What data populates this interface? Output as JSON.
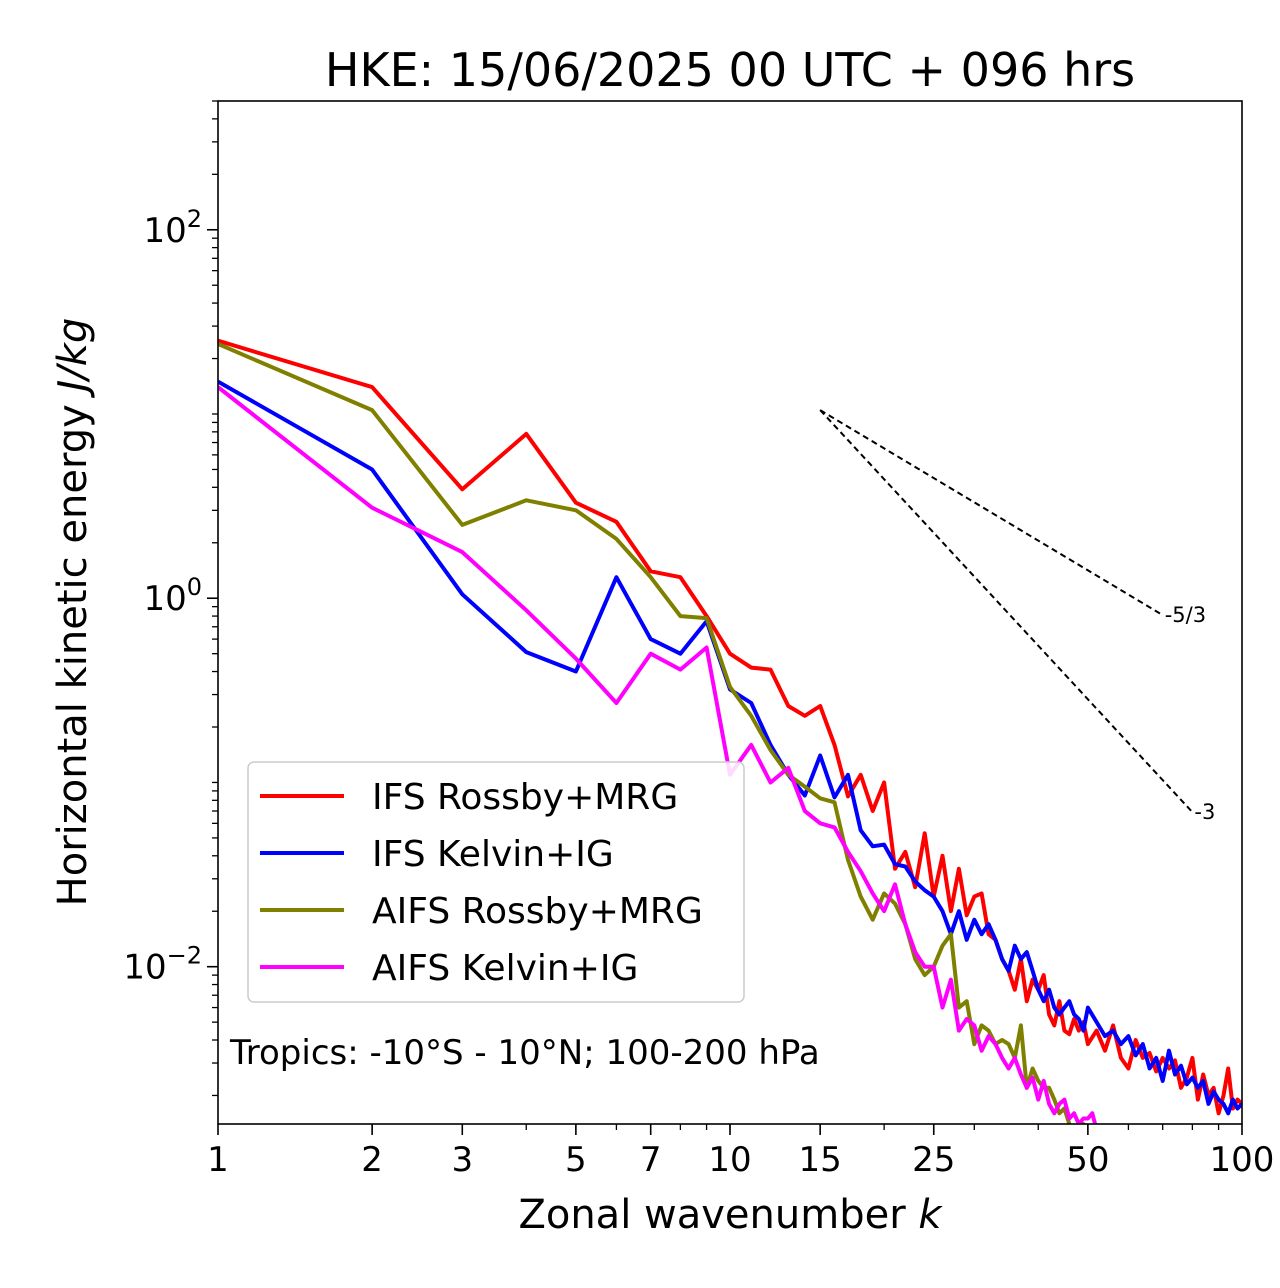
{
  "chart_data": {
    "type": "line",
    "title": "HKE: 15/06/2025 00 UTC + 096 hrs",
    "xlabel": "Zonal wavenumber",
    "xlabel_var": "k",
    "ylabel": "Horizontal kinetic energy",
    "ylabel_unit": "J/kg",
    "x_scale": "log",
    "y_scale": "log",
    "xlim": [
      1,
      100
    ],
    "ylim": [
      0.0014,
      500
    ],
    "x_ticks": [
      1,
      2,
      3,
      5,
      7,
      10,
      15,
      25,
      50,
      100
    ],
    "x_tick_labels": [
      "1",
      "2",
      "3",
      "5",
      "7",
      "10",
      "15",
      "25",
      "50",
      "100"
    ],
    "y_ticks": [
      0.01,
      1,
      100
    ],
    "y_tick_bases": [
      "10",
      "10",
      "10"
    ],
    "y_tick_exponents": [
      "−2",
      "0",
      "2"
    ],
    "grid": false,
    "legend_position": "lower-left",
    "annotation": "Tropics: -10°S - 10°N; 100-200 hPa",
    "reference_slopes": [
      {
        "label": "-5/3",
        "x_start": 15,
        "y_start": 10.5,
        "x_end": 70,
        "y_end": 0.81
      },
      {
        "label": "-3",
        "x_start": 15,
        "y_start": 10.5,
        "x_end": 80,
        "y_end": 0.069
      }
    ],
    "series": [
      {
        "name": "IFS Rossby+MRG",
        "color": "#ff0000",
        "x": [
          1,
          2,
          3,
          4,
          5,
          6,
          7,
          8,
          9,
          10,
          11,
          12,
          13,
          14,
          15,
          16,
          17,
          18,
          19,
          20,
          21,
          22,
          23,
          24,
          25,
          26,
          27,
          28,
          29,
          30,
          31,
          32,
          33,
          34,
          35,
          36,
          37,
          38,
          39,
          40,
          41,
          42,
          43,
          44,
          45,
          46,
          47,
          48,
          49,
          50,
          52,
          54,
          56,
          58,
          60,
          62,
          64,
          66,
          68,
          70,
          72,
          74,
          76,
          78,
          80,
          82,
          84,
          86,
          88,
          90,
          92,
          94,
          96,
          98,
          100
        ],
        "y": [
          25,
          14,
          3.9,
          7.8,
          3.3,
          2.6,
          1.4,
          1.3,
          0.8,
          0.5,
          0.42,
          0.41,
          0.26,
          0.23,
          0.26,
          0.16,
          0.084,
          0.11,
          0.07,
          0.1,
          0.034,
          0.042,
          0.027,
          0.053,
          0.024,
          0.04,
          0.02,
          0.034,
          0.019,
          0.024,
          0.025,
          0.015,
          0.014,
          0.011,
          0.0095,
          0.0075,
          0.011,
          0.0065,
          0.0085,
          0.0075,
          0.009,
          0.0055,
          0.0048,
          0.0065,
          0.0045,
          0.0043,
          0.0052,
          0.0045,
          0.005,
          0.0038,
          0.0045,
          0.0035,
          0.0048,
          0.0032,
          0.0028,
          0.004,
          0.0032,
          0.0034,
          0.0027,
          0.0032,
          0.0028,
          0.0031,
          0.0022,
          0.0025,
          0.0032,
          0.0019,
          0.0026,
          0.002,
          0.0022,
          0.0016,
          0.002,
          0.0028,
          0.0017,
          0.0019,
          0.0018
        ]
      },
      {
        "name": "IFS Kelvin+IG",
        "color": "#0000ff",
        "x": [
          1,
          2,
          3,
          4,
          5,
          6,
          7,
          8,
          9,
          10,
          11,
          12,
          13,
          14,
          15,
          16,
          17,
          18,
          19,
          20,
          21,
          22,
          23,
          24,
          25,
          26,
          27,
          28,
          29,
          30,
          31,
          32,
          33,
          34,
          35,
          36,
          37,
          38,
          39,
          40,
          41,
          42,
          43,
          44,
          45,
          46,
          47,
          48,
          49,
          50,
          52,
          54,
          56,
          58,
          60,
          62,
          64,
          66,
          68,
          70,
          72,
          74,
          76,
          78,
          80,
          82,
          84,
          86,
          88,
          90,
          92,
          94,
          96,
          98,
          100
        ],
        "y": [
          15,
          5.0,
          1.05,
          0.51,
          0.4,
          1.3,
          0.6,
          0.5,
          0.75,
          0.32,
          0.27,
          0.16,
          0.11,
          0.085,
          0.14,
          0.083,
          0.11,
          0.055,
          0.045,
          0.046,
          0.036,
          0.035,
          0.029,
          0.026,
          0.024,
          0.02,
          0.015,
          0.02,
          0.014,
          0.018,
          0.015,
          0.017,
          0.014,
          0.011,
          0.0095,
          0.013,
          0.011,
          0.012,
          0.0095,
          0.0075,
          0.0065,
          0.0075,
          0.006,
          0.0055,
          0.006,
          0.0065,
          0.0055,
          0.0052,
          0.0045,
          0.006,
          0.005,
          0.0042,
          0.0045,
          0.0038,
          0.0042,
          0.0033,
          0.0038,
          0.0028,
          0.0032,
          0.0024,
          0.0035,
          0.0026,
          0.0029,
          0.0023,
          0.0025,
          0.0022,
          0.0024,
          0.0018,
          0.0021,
          0.0019,
          0.0018,
          0.0016,
          0.0019,
          0.0017,
          0.0018
        ]
      },
      {
        "name": "AIFS Rossby+MRG",
        "color": "#808000",
        "x": [
          1,
          2,
          3,
          4,
          5,
          6,
          7,
          8,
          9,
          10,
          11,
          12,
          13,
          14,
          15,
          16,
          17,
          18,
          19,
          20,
          21,
          22,
          23,
          24,
          25,
          26,
          27,
          28,
          29,
          30,
          31,
          32,
          33,
          34,
          35,
          36,
          37,
          38,
          39,
          40,
          41,
          42,
          43,
          44,
          45,
          46,
          47,
          48,
          49,
          50
        ],
        "y": [
          24,
          10.5,
          2.5,
          3.4,
          3.0,
          2.1,
          1.3,
          0.8,
          0.78,
          0.33,
          0.23,
          0.15,
          0.11,
          0.095,
          0.082,
          0.078,
          0.038,
          0.024,
          0.018,
          0.025,
          0.022,
          0.017,
          0.011,
          0.009,
          0.01,
          0.013,
          0.015,
          0.006,
          0.0065,
          0.0038,
          0.0048,
          0.0045,
          0.0038,
          0.004,
          0.0038,
          0.0032,
          0.0048,
          0.0022,
          0.0028,
          0.0024,
          0.0022,
          0.0022,
          0.0019,
          0.0016,
          0.0017,
          0.0014,
          0.0013,
          0.0014,
          0.0014,
          0.0012
        ]
      },
      {
        "name": "AIFS Kelvin+IG",
        "color": "#ff00ff",
        "x": [
          1,
          2,
          3,
          4,
          5,
          6,
          7,
          8,
          9,
          10,
          11,
          12,
          13,
          14,
          15,
          16,
          17,
          18,
          19,
          20,
          21,
          22,
          23,
          24,
          25,
          26,
          27,
          28,
          29,
          30,
          31,
          32,
          33,
          34,
          35,
          36,
          37,
          38,
          39,
          40,
          41,
          42,
          43,
          44,
          45,
          46,
          47,
          48,
          49,
          50,
          51,
          52,
          53,
          54
        ],
        "y": [
          14,
          3.1,
          1.78,
          0.86,
          0.47,
          0.27,
          0.5,
          0.41,
          0.54,
          0.11,
          0.16,
          0.1,
          0.12,
          0.07,
          0.06,
          0.057,
          0.042,
          0.033,
          0.025,
          0.02,
          0.028,
          0.017,
          0.012,
          0.01,
          0.01,
          0.006,
          0.0085,
          0.0045,
          0.0052,
          0.0048,
          0.0035,
          0.0042,
          0.0038,
          0.0032,
          0.0028,
          0.0032,
          0.0026,
          0.0022,
          0.0025,
          0.0019,
          0.0024,
          0.0018,
          0.0016,
          0.0018,
          0.0019,
          0.0015,
          0.0016,
          0.0014,
          0.0015,
          0.0015,
          0.0016,
          0.0013,
          0.0012,
          0.0011
        ]
      }
    ]
  }
}
